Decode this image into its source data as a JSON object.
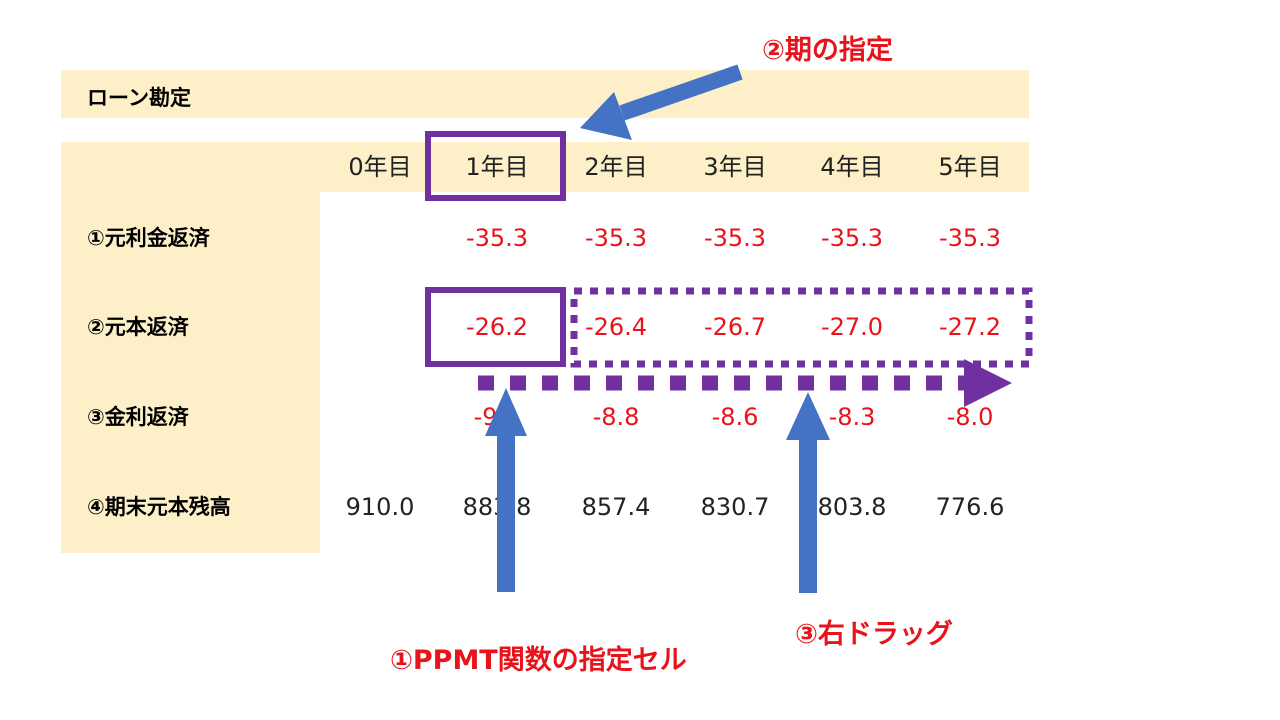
{
  "table": {
    "title": "ローン勘定",
    "headers": [
      "0年目",
      "1年目",
      "2年目",
      "3年目",
      "4年目",
      "5年目"
    ],
    "rows": [
      {
        "label": "①元利金返済",
        "values": [
          "",
          "-35.3",
          "-35.3",
          "-35.3",
          "-35.3",
          "-35.3"
        ],
        "color": "neg"
      },
      {
        "label": "②元本返済",
        "values": [
          "",
          "-26.2",
          "-26.4",
          "-26.7",
          "-27.0",
          "-27.2"
        ],
        "color": "neg"
      },
      {
        "label": "③金利返済",
        "values": [
          "",
          "-9.1",
          "-8.8",
          "-8.6",
          "-8.3",
          "-8.0"
        ],
        "color": "neg"
      },
      {
        "label": "④期末元本残高",
        "values": [
          "910.0",
          "883.8",
          "857.4",
          "830.7",
          "803.8",
          "776.6"
        ],
        "color": "pos"
      }
    ]
  },
  "callouts": {
    "period": "②期の指定",
    "ppmt_cell": "①PPMT関数の指定セル",
    "drag_right": "③右ドラッグ"
  },
  "colors": {
    "band": "#fdf0c9",
    "red_text": "#e8141c",
    "purple": "#7030a0",
    "arrow_blue": "#4472c4"
  }
}
